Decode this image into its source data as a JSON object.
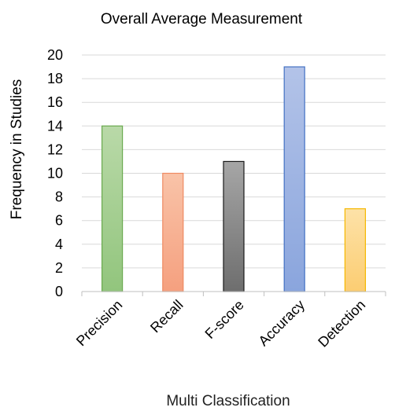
{
  "chart_data": {
    "type": "bar",
    "title": "Overall Average Measurement",
    "xlabel": "Multi Classification",
    "ylabel": "Frequency in Studies",
    "categories": [
      "Precision",
      "Recall",
      "F-score",
      "Accuracy",
      "Detection"
    ],
    "values": [
      14,
      10,
      11,
      19,
      7
    ],
    "ylim": [
      0,
      20
    ],
    "yticks": [
      0,
      2,
      4,
      6,
      8,
      10,
      12,
      14,
      16,
      18,
      20
    ],
    "grid": true,
    "legend": "none",
    "colors": {
      "fills_top": [
        "#b9d9a8",
        "#f9c3a8",
        "#a6a6a6",
        "#b3c3e8",
        "#fde2a8"
      ],
      "fills_bottom": [
        "#92c57d",
        "#f5a07f",
        "#6e6e6e",
        "#8aa5dd",
        "#fccd72"
      ],
      "strokes": [
        "#6aaa4f",
        "#ef8a62",
        "#1a1a1a",
        "#4472c4",
        "#f5b800"
      ]
    }
  }
}
